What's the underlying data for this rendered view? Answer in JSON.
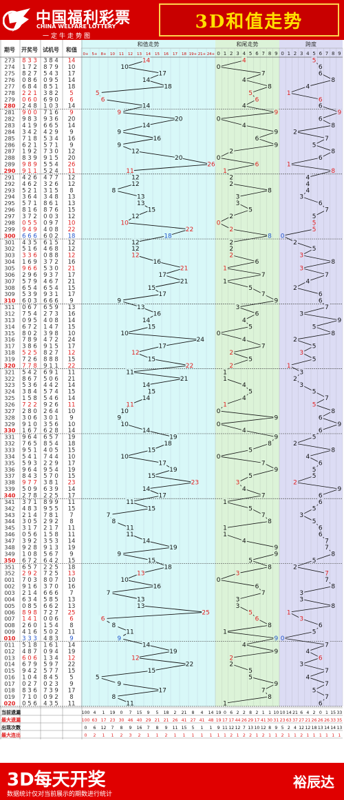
{
  "header": {
    "brand_cn": "中国福利彩票",
    "brand_en": "CHINA WELFARE LOTTERY",
    "slogan": "一定牛走势图",
    "title": "3D和值走势"
  },
  "footer": {
    "main": "3D每天开奖",
    "note": "数据统计仅对当前展示的期数进行统计",
    "author": "裕辰达"
  },
  "colors": {
    "brand_red": "#d40000",
    "title_yellow": "#ffe000",
    "sum_bg": "#d8f8f8",
    "tail_bg": "#dcf3d8",
    "span_bg": "#dcdcf4"
  },
  "chart_data": {
    "type": "table",
    "title": "3D和值走势",
    "columns": [
      "期号",
      "开奖号",
      "试机号",
      "和值"
    ],
    "sections": {
      "sum": "和值走势",
      "tail": "和尾走势",
      "span": "跨度"
    },
    "sum_header": [
      "0+",
      "5+",
      "8+",
      "10",
      "11",
      "12",
      "13",
      "14",
      "15",
      "16",
      "17",
      "18",
      "19+",
      "21+",
      "24+"
    ],
    "tail_header": [
      "0",
      "1",
      "2",
      "3",
      "4",
      "5",
      "6",
      "7",
      "8",
      "9"
    ],
    "span_header": [
      "0",
      "1",
      "2",
      "3",
      "4",
      "5",
      "6",
      "7",
      "8",
      "9"
    ],
    "rows": [
      [
        "273",
        "833",
        "384",
        "14"
      ],
      [
        "274",
        "172",
        "879",
        "10"
      ],
      [
        "275",
        "827",
        "543",
        "17"
      ],
      [
        "276",
        "086",
        "095",
        "14"
      ],
      [
        "277",
        "684",
        "851",
        "18"
      ],
      [
        "278",
        "221",
        "382",
        "5"
      ],
      [
        "279",
        "060",
        "690",
        "6"
      ],
      [
        "280",
        "248",
        "103",
        "14"
      ],
      [
        "281",
        "900",
        "716",
        "9"
      ],
      [
        "282",
        "983",
        "936",
        "20"
      ],
      [
        "283",
        "419",
        "665",
        "14"
      ],
      [
        "284",
        "342",
        "429",
        "9"
      ],
      [
        "285",
        "718",
        "534",
        "16"
      ],
      [
        "286",
        "621",
        "571",
        "9"
      ],
      [
        "287",
        "192",
        "730",
        "12"
      ],
      [
        "288",
        "839",
        "915",
        "20"
      ],
      [
        "289",
        "989",
        "554",
        "26"
      ],
      [
        "290",
        "911",
        "524",
        "11"
      ],
      [
        "291",
        "426",
        "477",
        "12"
      ],
      [
        "292",
        "462",
        "326",
        "12"
      ],
      [
        "293",
        "521",
        "315",
        "8"
      ],
      [
        "294",
        "364",
        "348",
        "13"
      ],
      [
        "295",
        "571",
        "861",
        "13"
      ],
      [
        "296",
        "816",
        "876",
        "15"
      ],
      [
        "297",
        "372",
        "003",
        "12"
      ],
      [
        "298",
        "055",
        "097",
        "10"
      ],
      [
        "299",
        "949",
        "408",
        "22"
      ],
      [
        "300",
        "666",
        "602",
        "18"
      ],
      [
        "301",
        "435",
        "615",
        "12"
      ],
      [
        "302",
        "516",
        "468",
        "12"
      ],
      [
        "303",
        "336",
        "088",
        "12"
      ],
      [
        "304",
        "169",
        "372",
        "16"
      ],
      [
        "305",
        "966",
        "530",
        "21"
      ],
      [
        "306",
        "296",
        "937",
        "17"
      ],
      [
        "307",
        "579",
        "467",
        "21"
      ],
      [
        "308",
        "654",
        "654",
        "15"
      ],
      [
        "309",
        "539",
        "931",
        "17"
      ],
      [
        "310",
        "603",
        "666",
        "9"
      ],
      [
        "311",
        "067",
        "659",
        "13"
      ],
      [
        "312",
        "754",
        "273",
        "16"
      ],
      [
        "313",
        "095",
        "408",
        "14"
      ],
      [
        "314",
        "672",
        "147",
        "15"
      ],
      [
        "315",
        "802",
        "398",
        "10"
      ],
      [
        "316",
        "789",
        "472",
        "24"
      ],
      [
        "317",
        "386",
        "915",
        "17"
      ],
      [
        "318",
        "525",
        "827",
        "12"
      ],
      [
        "319",
        "726",
        "888",
        "15"
      ],
      [
        "320",
        "778",
        "911",
        "22"
      ],
      [
        "321",
        "542",
        "691",
        "11"
      ],
      [
        "322",
        "867",
        "506",
        "21"
      ],
      [
        "323",
        "536",
        "442",
        "14"
      ],
      [
        "324",
        "384",
        "574",
        "15"
      ],
      [
        "325",
        "158",
        "546",
        "14"
      ],
      [
        "326",
        "722",
        "926",
        "11"
      ],
      [
        "327",
        "280",
        "264",
        "10"
      ],
      [
        "328",
        "306",
        "301",
        "9"
      ],
      [
        "329",
        "910",
        "356",
        "10"
      ],
      [
        "330",
        "167",
        "628",
        "14"
      ],
      [
        "331",
        "964",
        "657",
        "19"
      ],
      [
        "332",
        "765",
        "854",
        "18"
      ],
      [
        "333",
        "951",
        "405",
        "15"
      ],
      [
        "334",
        "541",
        "744",
        "10"
      ],
      [
        "335",
        "593",
        "229",
        "17"
      ],
      [
        "336",
        "964",
        "954",
        "19"
      ],
      [
        "337",
        "843",
        "570",
        "15"
      ],
      [
        "338",
        "977",
        "381",
        "23"
      ],
      [
        "339",
        "509",
        "639",
        "14"
      ],
      [
        "340",
        "278",
        "225",
        "17"
      ],
      [
        "341",
        "371",
        "899",
        "11"
      ],
      [
        "342",
        "483",
        "955",
        "15"
      ],
      [
        "343",
        "214",
        "781",
        "7"
      ],
      [
        "344",
        "305",
        "292",
        "8"
      ],
      [
        "345",
        "317",
        "217",
        "11"
      ],
      [
        "346",
        "056",
        "158",
        "11"
      ],
      [
        "347",
        "392",
        "353",
        "14"
      ],
      [
        "348",
        "928",
        "913",
        "19"
      ],
      [
        "349",
        "108",
        "567",
        "9"
      ],
      [
        "350",
        "672",
        "642",
        "15"
      ],
      [
        "351",
        "657",
        "225",
        "18"
      ],
      [
        "352",
        "292",
        "725",
        "13"
      ],
      [
        "001",
        "703",
        "807",
        "10"
      ],
      [
        "002",
        "916",
        "370",
        "16"
      ],
      [
        "003",
        "214",
        "666",
        "7"
      ],
      [
        "004",
        "634",
        "585",
        "13"
      ],
      [
        "005",
        "085",
        "662",
        "13"
      ],
      [
        "006",
        "898",
        "727",
        "25"
      ],
      [
        "007",
        "141",
        "006",
        "6"
      ],
      [
        "008",
        "260",
        "154",
        "8"
      ],
      [
        "009",
        "416",
        "502",
        "11"
      ],
      [
        "010",
        "333",
        "483",
        "9"
      ],
      [
        "011",
        "518",
        "161",
        "14"
      ],
      [
        "012",
        "487",
        "094",
        "19"
      ],
      [
        "013",
        "606",
        "134",
        "12"
      ],
      [
        "014",
        "679",
        "597",
        "22"
      ],
      [
        "015",
        "942",
        "577",
        "15"
      ],
      [
        "016",
        "104",
        "845",
        "5"
      ],
      [
        "017",
        "027",
        "023",
        "9"
      ],
      [
        "018",
        "836",
        "739",
        "17"
      ],
      [
        "019",
        "710",
        "092",
        "8"
      ],
      [
        "020",
        "056",
        "435",
        "11"
      ]
    ],
    "stat_labels": [
      "当前遗漏",
      "最大遗漏",
      "出现次数",
      "最大连出"
    ],
    "stats": [
      [
        "100",
        "4",
        "1",
        "19",
        "0",
        "7",
        "15",
        "9",
        "5",
        "18",
        "2",
        "21",
        "8",
        "4",
        "14",
        "19",
        "0",
        "6",
        "2",
        "2",
        "8",
        "2",
        "1",
        "1",
        "10",
        "10",
        "14",
        "21",
        "6",
        "4",
        "2",
        "0",
        "1",
        "15",
        "33"
      ],
      [
        "100",
        "63",
        "17",
        "23",
        "30",
        "46",
        "40",
        "29",
        "21",
        "21",
        "26",
        "41",
        "27",
        "41",
        "48",
        "19",
        "17",
        "17",
        "44",
        "26",
        "29",
        "17",
        "41",
        "30",
        "31",
        "23",
        "63",
        "37",
        "27",
        "21",
        "26",
        "26",
        "26",
        "33",
        "35"
      ],
      [
        "0",
        "6",
        "12",
        "7",
        "8",
        "9",
        "16",
        "7",
        "8",
        "9",
        "11",
        "15",
        "5",
        "1",
        "1",
        "9",
        "11",
        "12",
        "12",
        "7",
        "13",
        "10",
        "12",
        "8",
        "9",
        "5",
        "2",
        "4",
        "12",
        "12",
        "18",
        "13",
        "14",
        "14",
        "13"
      ],
      [
        "0",
        "2",
        "1",
        "1",
        "2",
        "3",
        "2",
        "1",
        "1",
        "2",
        "1",
        "1",
        "1",
        "1",
        "1",
        "1",
        "1",
        "2",
        "1",
        "2",
        "2",
        "1",
        "2",
        "1",
        "1",
        "2",
        "1",
        "1",
        "2",
        "1",
        "1",
        "1",
        "1",
        "1",
        "1"
      ]
    ]
  }
}
